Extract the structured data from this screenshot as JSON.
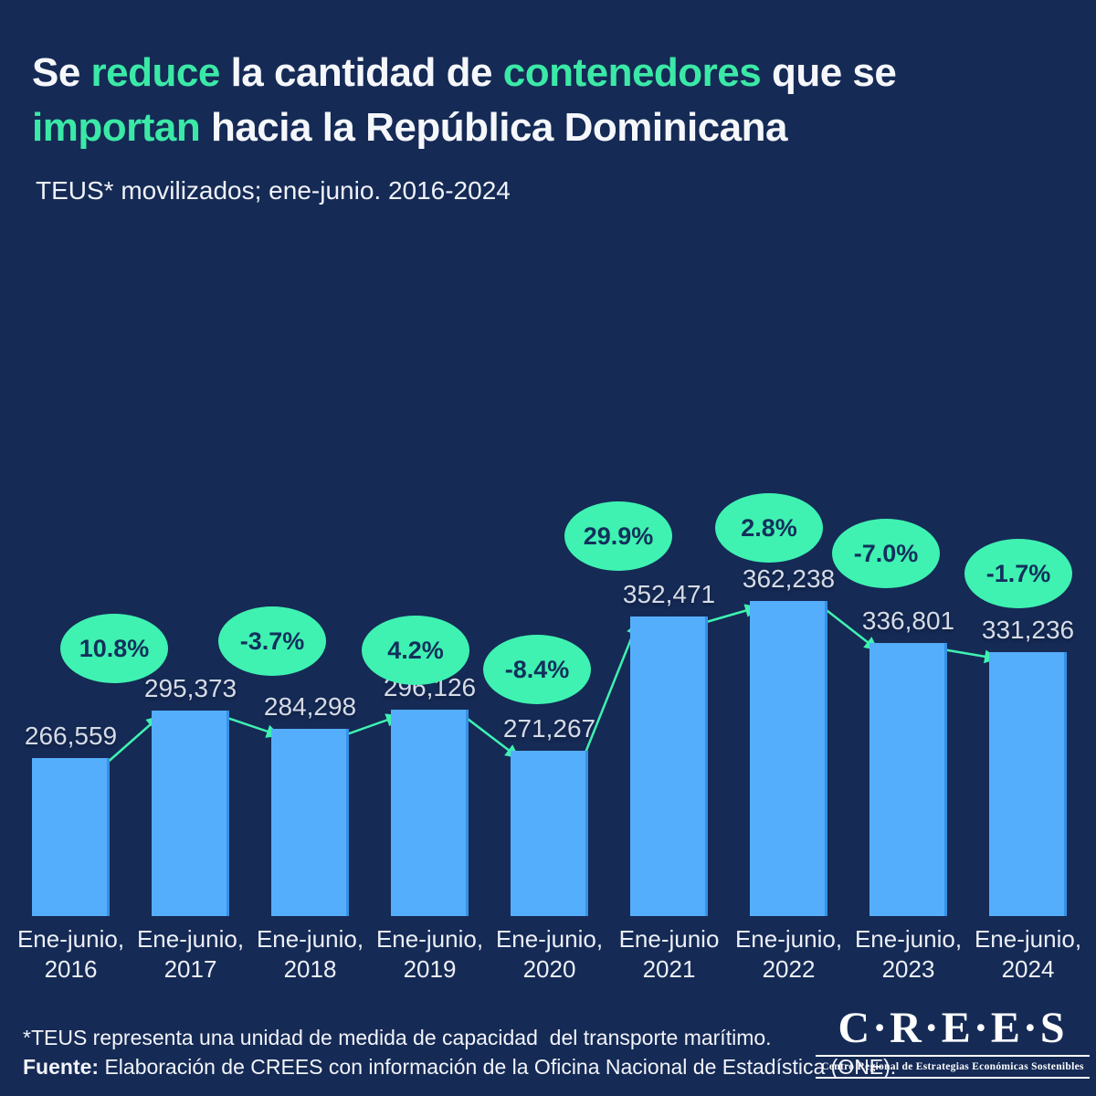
{
  "colors": {
    "background": "#152A55",
    "bar": "#55AEFC",
    "accent_green": "#3FF2B1",
    "title_green": "#3BE9A6",
    "bubble_text": "#13305C",
    "value_label": "#D6DBE6",
    "title_white": "#F5F7FB"
  },
  "header": {
    "title_segments": [
      {
        "text": "Se ",
        "highlight": false
      },
      {
        "text": "reduce",
        "highlight": true
      },
      {
        "text": " la cantidad de ",
        "highlight": false
      },
      {
        "text": "contenedores",
        "highlight": true
      },
      {
        "text": " que se",
        "highlight": false,
        "br": true
      },
      {
        "text": "importan",
        "highlight": true
      },
      {
        "text": " hacia la República Dominicana",
        "highlight": false
      }
    ],
    "subtitle": "TEUS* movilizados; ene-junio. 2016-2024"
  },
  "chart_data": {
    "type": "bar",
    "title": "Se reduce la cantidad de contenedores que se importan hacia la República Dominicana",
    "subtitle": "TEUS* movilizados; ene-junio. 2016-2024",
    "categories": [
      [
        "Ene-junio,",
        "2016"
      ],
      [
        "Ene-junio,",
        "2017"
      ],
      [
        "Ene-junio,",
        "2018"
      ],
      [
        "Ene-junio,",
        "2019"
      ],
      [
        "Ene-junio,",
        "2020"
      ],
      [
        "Ene-junio",
        "2021"
      ],
      [
        "Ene-junio,",
        "2022"
      ],
      [
        "Ene-junio,",
        "2023"
      ],
      [
        "Ene-junio,",
        "2024"
      ]
    ],
    "values": [
      266559,
      295373,
      284298,
      296126,
      271267,
      352471,
      362238,
      336801,
      331236
    ],
    "value_labels": [
      "266,559",
      "295,373",
      "284,298",
      "296,126",
      "271,267",
      "352,471",
      "362,238",
      "336,801",
      "331,236"
    ],
    "pct_changes": [
      "10.8%",
      "-3.7%",
      "4.2%",
      "-8.4%",
      "29.9%",
      "2.8%",
      "-7.0%",
      "-1.7%"
    ],
    "xlabel": "",
    "ylabel": "TEUS movilizados",
    "ylim": [
      170371,
      380000
    ],
    "grid": false,
    "legend": false,
    "annotations": "Flechas verdes entre barras indican la variación porcentual interanual"
  },
  "footer": {
    "note": "*TEUS representa una unidad de medida de capacidad  del transporte marítimo.",
    "source_label": "Fuente:",
    "source_text": " Elaboración de CREES con información de la Oficina Nacional de Estadística (ONE)."
  },
  "logo": {
    "wordmark": "C·R·E·E·S",
    "tagline": "Centro Regional de Estrategias Económicas Sostenibles"
  }
}
